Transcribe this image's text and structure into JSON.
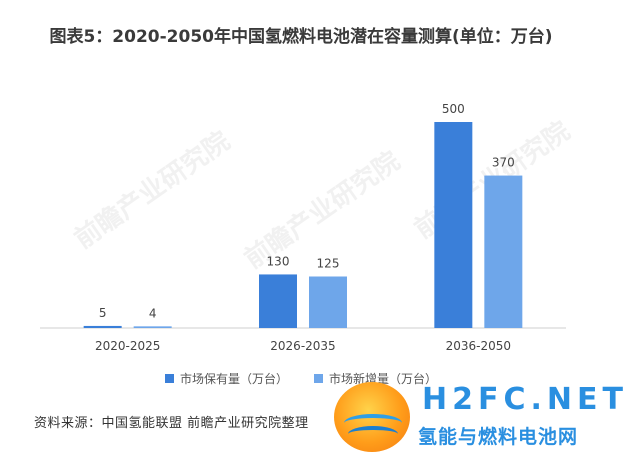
{
  "chart_data": {
    "type": "bar",
    "title": "图表5：2020-2050年中国氢燃料电池潜在容量测算(单位：万台)",
    "categories": [
      "2020-2025",
      "2026-2035",
      "2036-2050"
    ],
    "series": [
      {
        "name": "市场保有量（万台）",
        "values": [
          5,
          130,
          500
        ],
        "color": "#3a7fd9"
      },
      {
        "name": "市场新增量（万台）",
        "values": [
          4,
          125,
          370
        ],
        "color": "#6ea6ea"
      }
    ],
    "ylim": [
      0,
      500
    ],
    "grid": false,
    "legend_position": "bottom"
  },
  "source": "资料来源：中国氢能联盟 前瞻产业研究院整理",
  "watermark": "前瞻产业研究院",
  "site_logo": {
    "name": "H2FC.NET",
    "subtitle": "氢能与燃料电池网"
  }
}
